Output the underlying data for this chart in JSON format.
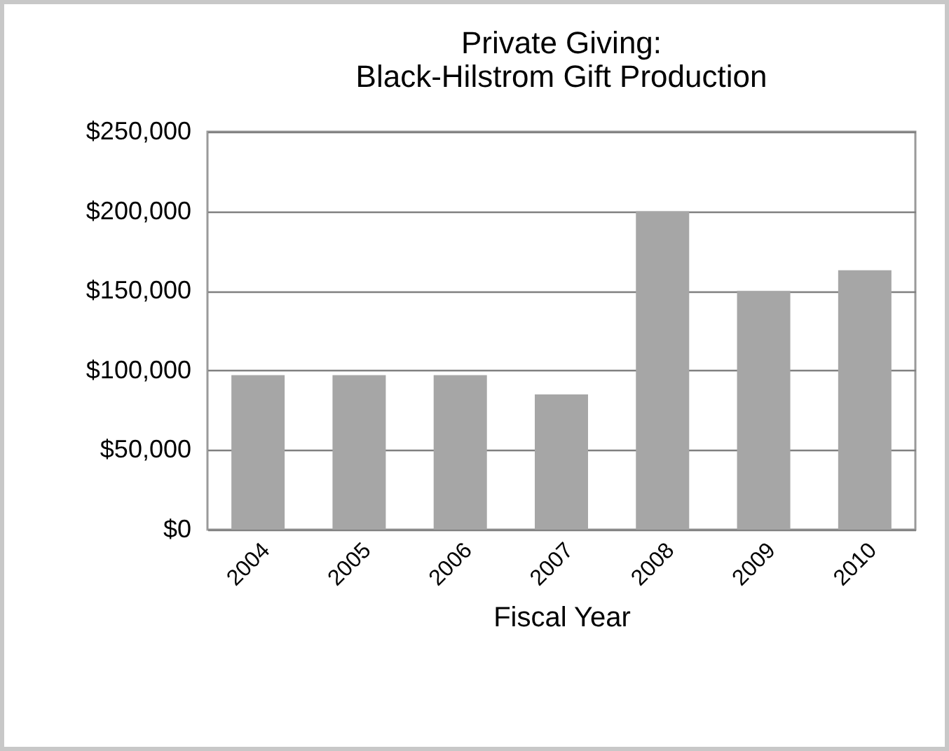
{
  "chart_data": {
    "type": "bar",
    "title": [
      "Private Giving:",
      "Black-Hilstrom Gift Production"
    ],
    "xlabel": "Fiscal Year",
    "categories": [
      "2004",
      "2005",
      "2006",
      "2007",
      "2008",
      "2009",
      "2010"
    ],
    "values": [
      97000,
      97000,
      97000,
      85000,
      200000,
      150000,
      163000
    ],
    "color": "#a6a6a6",
    "ylim": [
      0,
      250000
    ],
    "yticks": [
      {
        "value": 0,
        "label": "$0"
      },
      {
        "value": 50000,
        "label": "$50,000"
      },
      {
        "value": 100000,
        "label": "$100,000"
      },
      {
        "value": 150000,
        "label": "$150,000"
      },
      {
        "value": 200000,
        "label": "$200,000"
      },
      {
        "value": 250000,
        "label": "$250,000"
      }
    ],
    "grid": "y"
  }
}
